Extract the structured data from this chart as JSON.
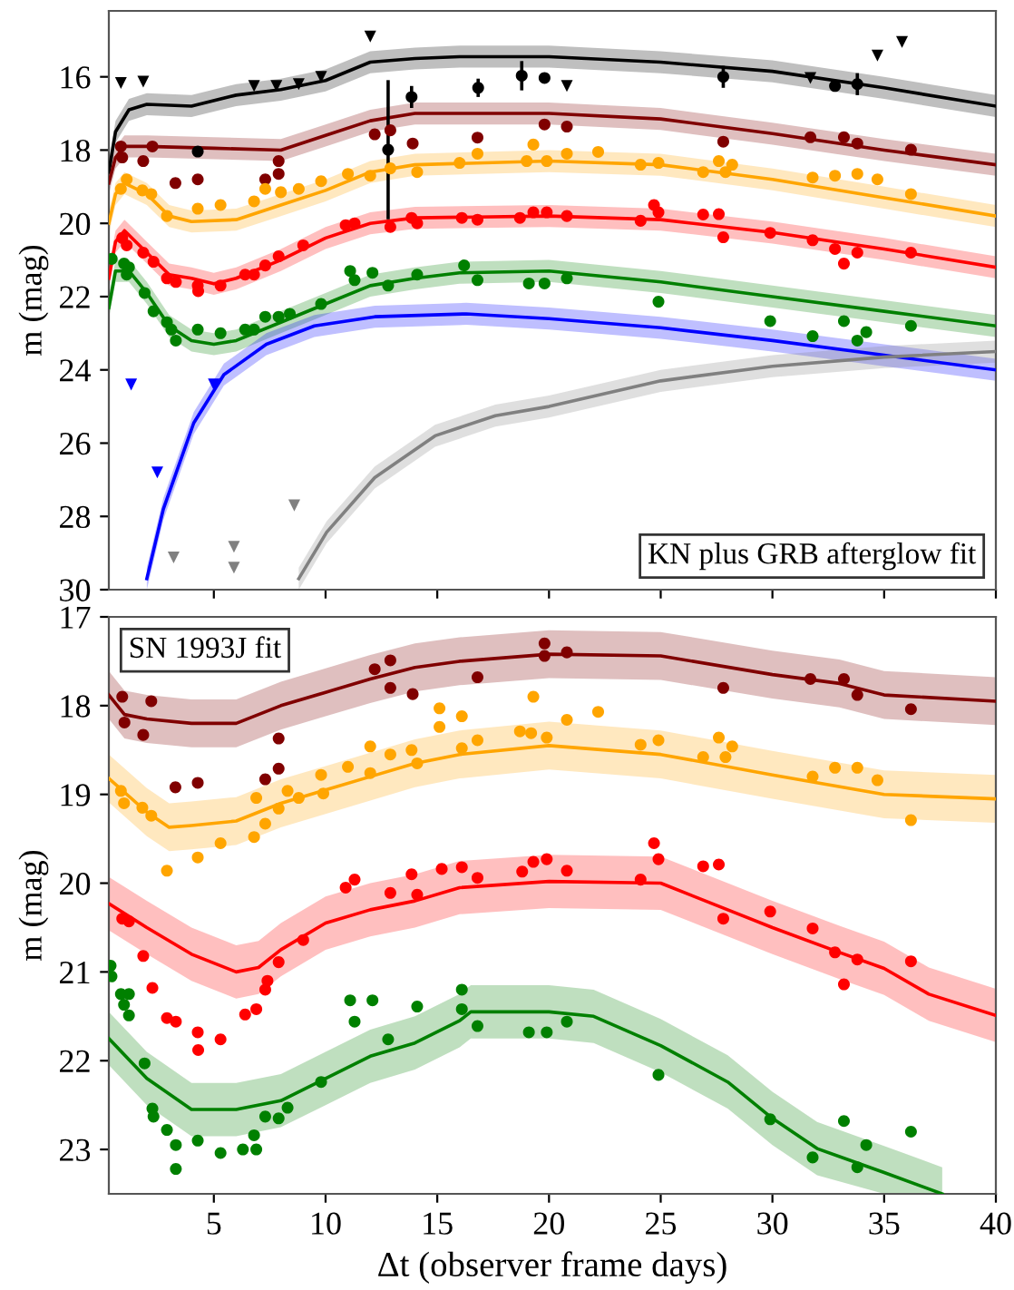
{
  "chart_data": [
    {
      "type": "line",
      "ylabel": "m (mag)",
      "xlim": [
        0.3,
        40
      ],
      "ylim": [
        30,
        14.2
      ],
      "xticks": [
        5,
        10,
        15,
        20,
        25,
        30,
        35,
        40
      ],
      "yticks": [
        16,
        18,
        20,
        22,
        24,
        26,
        28,
        30
      ],
      "tick_labels": "y",
      "annotations": [
        "KN plus GRB afterglow fit"
      ],
      "series": [
        {
          "type": "line",
          "color": "#000000",
          "x": [
            0.3,
            0.6,
            1.2,
            2,
            4,
            6,
            8,
            10,
            12,
            14,
            16,
            20,
            25,
            30,
            35,
            40
          ],
          "values": [
            18.6,
            17.5,
            16.9,
            16.75,
            16.8,
            16.5,
            16.35,
            16.1,
            15.6,
            15.5,
            15.45,
            15.45,
            15.6,
            15.85,
            16.3,
            16.8
          ],
          "lower": [
            18.3,
            17.2,
            16.6,
            16.45,
            16.5,
            16.2,
            16.05,
            15.8,
            15.3,
            15.2,
            15.15,
            15.15,
            15.3,
            15.55,
            16.0,
            16.5
          ],
          "upper": [
            18.9,
            17.8,
            17.2,
            17.05,
            17.1,
            16.8,
            16.65,
            16.4,
            15.9,
            15.8,
            15.75,
            15.75,
            15.9,
            16.15,
            16.6,
            17.1
          ]
        },
        {
          "type": "line",
          "color": "#800000",
          "x": [
            0.3,
            0.6,
            1,
            2,
            5,
            8,
            10,
            12,
            14,
            20,
            25,
            30,
            35,
            40
          ],
          "values": [
            18.9,
            18.2,
            17.9,
            17.9,
            17.95,
            18.0,
            17.6,
            17.2,
            17.0,
            17.0,
            17.15,
            17.55,
            18.0,
            18.4
          ],
          "lower": [
            18.6,
            17.9,
            17.6,
            17.6,
            17.65,
            17.7,
            17.3,
            16.9,
            16.7,
            16.7,
            16.85,
            17.25,
            17.7,
            18.1
          ],
          "upper": [
            19.2,
            18.5,
            18.2,
            18.2,
            18.25,
            18.3,
            17.9,
            17.5,
            17.3,
            17.3,
            17.45,
            17.85,
            18.3,
            18.7
          ]
        },
        {
          "type": "line",
          "color": "#ffa500",
          "x": [
            0.3,
            0.6,
            1,
            2,
            3,
            4,
            6,
            8,
            10,
            12,
            14,
            20,
            25,
            30,
            35,
            40
          ],
          "values": [
            20.0,
            19.2,
            18.9,
            19.2,
            19.8,
            19.95,
            19.9,
            19.5,
            19.1,
            18.6,
            18.4,
            18.3,
            18.4,
            18.8,
            19.3,
            19.8
          ],
          "lower": [
            19.7,
            18.9,
            18.6,
            18.9,
            19.5,
            19.65,
            19.6,
            19.2,
            18.8,
            18.3,
            18.1,
            18.0,
            18.1,
            18.5,
            19.0,
            19.5
          ],
          "upper": [
            20.3,
            19.5,
            19.2,
            19.5,
            20.1,
            20.25,
            20.2,
            19.8,
            19.4,
            18.9,
            18.7,
            18.6,
            18.7,
            19.1,
            19.6,
            20.1
          ]
        },
        {
          "type": "line",
          "color": "#ff0000",
          "x": [
            0.3,
            0.6,
            1,
            2,
            3,
            4,
            5,
            6,
            8,
            10,
            12,
            14,
            20,
            25,
            30,
            35,
            40
          ],
          "values": [
            21.5,
            20.5,
            20.2,
            20.8,
            21.4,
            21.5,
            21.65,
            21.5,
            21.0,
            20.4,
            20.0,
            19.85,
            19.8,
            19.9,
            20.25,
            20.7,
            21.2
          ],
          "lower": [
            21.2,
            20.2,
            19.9,
            20.5,
            21.1,
            21.2,
            21.35,
            21.2,
            20.7,
            20.1,
            19.7,
            19.55,
            19.5,
            19.6,
            19.95,
            20.4,
            20.9
          ],
          "upper": [
            21.8,
            20.8,
            20.5,
            21.1,
            21.7,
            21.8,
            21.95,
            21.8,
            21.3,
            20.7,
            20.3,
            20.15,
            20.1,
            20.2,
            20.55,
            21.0,
            21.5
          ]
        },
        {
          "type": "line",
          "color": "#008000",
          "x": [
            0.3,
            0.6,
            1.2,
            2,
            3,
            4,
            5,
            6,
            8,
            10,
            12,
            14,
            16,
            20,
            25,
            30,
            35,
            40
          ],
          "values": [
            22.3,
            21.3,
            21.3,
            21.9,
            22.8,
            23.2,
            23.3,
            23.2,
            22.7,
            22.2,
            21.7,
            21.5,
            21.35,
            21.3,
            21.6,
            22.0,
            22.4,
            22.8
          ],
          "lower": [
            22.0,
            21.0,
            21.0,
            21.6,
            22.5,
            22.9,
            23.0,
            22.9,
            22.4,
            21.9,
            21.4,
            21.2,
            21.05,
            21.0,
            21.3,
            21.7,
            22.1,
            22.5
          ],
          "upper": [
            22.6,
            21.6,
            21.6,
            22.2,
            23.1,
            23.5,
            23.6,
            23.5,
            23.0,
            22.5,
            22.0,
            21.8,
            21.65,
            21.6,
            21.9,
            22.3,
            22.7,
            23.1
          ]
        },
        {
          "type": "line",
          "color": "#0000ff",
          "x": [
            2.0,
            2.74,
            4.1,
            5.45,
            7.35,
            9.5,
            12.2,
            16.3,
            20,
            25,
            30,
            35,
            40
          ],
          "values": [
            29.7,
            27.8,
            25.45,
            24.13,
            23.3,
            22.8,
            22.55,
            22.47,
            22.6,
            22.85,
            23.2,
            23.6,
            24.0
          ],
          "lower": [
            29.4,
            27.5,
            25.15,
            23.83,
            23.0,
            22.5,
            22.25,
            22.17,
            22.3,
            22.55,
            22.9,
            23.3,
            23.7
          ],
          "upper": [
            30.0,
            28.1,
            25.75,
            24.43,
            23.6,
            23.1,
            22.85,
            22.77,
            22.9,
            23.15,
            23.5,
            23.9,
            24.3
          ]
        },
        {
          "type": "line",
          "color": "#808080",
          "x": [
            8.8,
            10.05,
            12.2,
            14.9,
            17.6,
            20,
            25,
            30,
            35,
            40
          ],
          "values": [
            29.7,
            28.43,
            26.94,
            25.8,
            25.25,
            25.0,
            24.3,
            23.9,
            23.65,
            23.5
          ],
          "lower": [
            29.4,
            28.13,
            26.64,
            25.5,
            24.95,
            24.7,
            24.0,
            23.6,
            23.35,
            23.2
          ],
          "upper": [
            30.0,
            28.73,
            27.24,
            26.1,
            25.55,
            25.3,
            24.6,
            24.2,
            23.95,
            23.8
          ]
        },
        {
          "type": "scatter",
          "marker": "circle",
          "color": "#000000",
          "x": [
            4.28,
            12.8,
            13.85,
            16.83,
            18.78,
            19.8,
            27.8,
            32.8,
            33.8
          ],
          "values": [
            18.04,
            17.99,
            16.55,
            16.3,
            15.97,
            16.03,
            16.0,
            16.25,
            16.2
          ],
          "errors": [
            null,
            1.9,
            0.3,
            0.25,
            0.4,
            null,
            0.3,
            null,
            0.3
          ]
        },
        {
          "type": "scatter",
          "marker": "circle",
          "color": "#800000",
          "x": [
            0.84,
            0.9,
            1.84,
            2.25,
            3.28,
            4.28,
            7.3,
            7.9,
            7.9,
            12.2,
            12.9,
            13.9,
            16.8,
            19.8,
            20.8,
            27.8,
            31.7,
            33.2,
            33.8,
            36.2
          ],
          "values": [
            17.9,
            18.2,
            18.3,
            17.9,
            18.9,
            18.8,
            18.8,
            18.3,
            18.65,
            17.57,
            17.46,
            17.82,
            17.66,
            17.3,
            17.36,
            17.77,
            17.65,
            17.65,
            17.82,
            17.99
          ]
        },
        {
          "type": "scatter",
          "marker": "circle",
          "color": "#ffa500",
          "x": [
            0.84,
            1.1,
            1.8,
            2.2,
            2.9,
            4.28,
            5.3,
            6.8,
            7.3,
            8.0,
            8.8,
            9.8,
            11.0,
            12.0,
            12.9,
            14.1,
            16.0,
            16.8,
            19.0,
            19.3,
            19.9,
            20.8,
            22.2,
            24.1,
            24.9,
            26.9,
            27.6,
            27.9,
            28.2,
            31.8,
            32.8,
            33.8,
            34.7,
            36.2
          ],
          "values": [
            19.06,
            18.8,
            19.1,
            19.2,
            19.8,
            19.6,
            19.5,
            19.4,
            19.06,
            19.15,
            19.06,
            18.85,
            18.65,
            18.7,
            18.5,
            18.6,
            18.35,
            18.1,
            18.3,
            17.85,
            18.3,
            18.1,
            18.05,
            18.4,
            18.35,
            18.6,
            18.3,
            18.6,
            18.4,
            18.75,
            18.7,
            18.65,
            18.8,
            19.2
          ]
        },
        {
          "type": "scatter",
          "marker": "circle",
          "color": "#ff0000",
          "x": [
            0.9,
            1.1,
            1.84,
            2.3,
            2.9,
            3.3,
            4.28,
            4.3,
            5.3,
            6.4,
            6.8,
            7.3,
            7.9,
            9.0,
            10.9,
            11.3,
            12.9,
            13.85,
            14.1,
            16.1,
            16.8,
            18.7,
            19.3,
            19.9,
            20.8,
            24.1,
            24.7,
            24.9,
            26.9,
            27.6,
            27.8,
            29.9,
            31.8,
            32.8,
            33.2,
            33.8,
            36.2
          ],
          "values": [
            20.4,
            20.6,
            20.8,
            21.05,
            21.5,
            21.6,
            21.7,
            21.85,
            21.7,
            21.4,
            21.4,
            21.15,
            20.9,
            20.6,
            20.05,
            20.0,
            20.1,
            19.85,
            20.0,
            19.85,
            19.9,
            19.85,
            19.7,
            19.7,
            19.8,
            19.93,
            19.5,
            19.7,
            19.76,
            19.75,
            20.38,
            20.26,
            20.46,
            20.7,
            21.1,
            20.8,
            20.8
          ]
        },
        {
          "type": "scatter",
          "marker": "circle",
          "color": "#008000",
          "x": [
            0.43,
            0.98,
            1.1,
            1.2,
            1.9,
            2.3,
            2.9,
            3.1,
            3.3,
            4.28,
            5.3,
            6.4,
            6.8,
            7.3,
            7.9,
            8.4,
            9.8,
            11.1,
            11.3,
            12.1,
            12.8,
            14.1,
            16.2,
            16.8,
            19.1,
            19.8,
            20.8,
            24.9,
            29.9,
            31.8,
            33.2,
            33.8,
            34.2,
            36.2
          ],
          "values": [
            20.97,
            21.1,
            21.4,
            21.2,
            21.9,
            22.4,
            22.7,
            22.9,
            23.2,
            22.9,
            23.0,
            22.9,
            22.9,
            22.55,
            22.55,
            22.47,
            22.2,
            21.3,
            21.55,
            21.35,
            21.7,
            21.4,
            21.15,
            21.55,
            21.64,
            21.64,
            21.5,
            22.14,
            22.67,
            23.08,
            22.67,
            23.2,
            22.97,
            22.8
          ]
        },
        {
          "type": "scatter",
          "marker": "triangle",
          "color": "#000000",
          "x": [
            0.84,
            1.84,
            6.8,
            7.8,
            8.8,
            9.8,
            12.0,
            20.8,
            31.7,
            34.7,
            35.8
          ],
          "values": [
            16.17,
            16.13,
            16.25,
            16.25,
            16.2,
            16.0,
            14.9,
            16.25,
            16.03,
            15.42,
            15.05
          ]
        },
        {
          "type": "scatter",
          "marker": "triangle",
          "color": "#0000ff",
          "x": [
            1.3,
            2.47,
            5.0
          ],
          "values": [
            24.4,
            26.8,
            24.4
          ]
        },
        {
          "type": "scatter",
          "marker": "triangle",
          "color": "#808080",
          "x": [
            3.2,
            5.9,
            5.9,
            8.6
          ],
          "values": [
            29.12,
            28.83,
            29.4,
            27.7
          ]
        }
      ]
    },
    {
      "type": "line",
      "ylabel": "m (mag)",
      "xlabel": "Δt (observer frame days)",
      "xlim": [
        0.3,
        40
      ],
      "ylim": [
        23.5,
        17
      ],
      "xticks": [
        5,
        10,
        15,
        20,
        25,
        30,
        35,
        40
      ],
      "yticks": [
        17,
        18,
        19,
        20,
        21,
        22,
        23
      ],
      "annotations": [
        "SN 1993J fit"
      ],
      "series": [
        {
          "type": "line",
          "color": "#800000",
          "x": [
            0.3,
            1,
            2,
            4,
            6,
            8,
            10,
            12,
            14,
            16,
            20,
            25,
            30,
            33,
            35,
            40
          ],
          "values": [
            17.88,
            18.1,
            18.15,
            18.2,
            18.2,
            18.0,
            17.85,
            17.7,
            17.57,
            17.5,
            17.42,
            17.44,
            17.65,
            17.75,
            17.88,
            17.95
          ],
          "lower": [
            17.61,
            17.83,
            17.88,
            17.93,
            17.93,
            17.73,
            17.58,
            17.43,
            17.3,
            17.23,
            17.15,
            17.17,
            17.38,
            17.48,
            17.61,
            17.68
          ],
          "upper": [
            18.15,
            18.37,
            18.42,
            18.47,
            18.47,
            18.27,
            18.12,
            17.97,
            17.84,
            17.77,
            17.69,
            17.71,
            17.92,
            18.02,
            18.15,
            18.22
          ]
        },
        {
          "type": "line",
          "color": "#ffa500",
          "x": [
            0.3,
            2,
            3,
            4,
            6,
            8,
            10,
            12,
            14,
            16,
            20,
            25,
            30,
            35,
            40
          ],
          "values": [
            18.82,
            19.2,
            19.37,
            19.35,
            19.3,
            19.1,
            18.95,
            18.8,
            18.65,
            18.55,
            18.45,
            18.55,
            18.78,
            19.0,
            19.05
          ],
          "lower": [
            18.55,
            18.93,
            19.1,
            19.08,
            19.03,
            18.83,
            18.68,
            18.53,
            18.38,
            18.28,
            18.18,
            18.28,
            18.51,
            18.73,
            18.78
          ],
          "upper": [
            19.09,
            19.47,
            19.64,
            19.62,
            19.57,
            19.37,
            19.22,
            19.07,
            18.92,
            18.82,
            18.72,
            18.82,
            19.05,
            19.27,
            19.32
          ]
        },
        {
          "type": "line",
          "color": "#ff0000",
          "x": [
            0.3,
            2,
            4,
            6,
            7,
            8,
            10,
            12,
            14,
            16,
            20,
            25,
            30,
            33,
            35,
            37,
            40
          ],
          "values": [
            20.23,
            20.5,
            20.8,
            21.0,
            20.95,
            20.75,
            20.45,
            20.3,
            20.2,
            20.05,
            19.98,
            20.0,
            20.5,
            20.78,
            20.96,
            21.25,
            21.49
          ],
          "lower": [
            19.93,
            20.2,
            20.5,
            20.7,
            20.65,
            20.45,
            20.15,
            20.0,
            19.9,
            19.75,
            19.68,
            19.7,
            20.2,
            20.48,
            20.66,
            20.95,
            21.19
          ],
          "upper": [
            20.53,
            20.8,
            21.1,
            21.3,
            21.25,
            21.05,
            20.75,
            20.6,
            20.5,
            20.35,
            20.28,
            20.3,
            20.8,
            21.08,
            21.26,
            21.55,
            21.79
          ]
        },
        {
          "type": "line",
          "color": "#008000",
          "x": [
            0.3,
            2,
            4,
            6,
            8,
            10,
            12,
            14,
            16,
            16.5,
            20,
            22,
            25,
            28,
            30,
            32,
            35,
            37.6
          ],
          "values": [
            21.75,
            22.2,
            22.55,
            22.55,
            22.45,
            22.2,
            21.95,
            21.8,
            21.55,
            21.45,
            21.45,
            21.5,
            21.83,
            22.24,
            22.65,
            22.99,
            23.26,
            23.5
          ],
          "lower": [
            21.45,
            21.9,
            22.25,
            22.25,
            22.15,
            21.9,
            21.65,
            21.5,
            21.25,
            21.15,
            21.15,
            21.2,
            21.53,
            21.94,
            22.35,
            22.69,
            22.96,
            23.2
          ],
          "upper": [
            22.05,
            22.5,
            22.85,
            22.85,
            22.75,
            22.5,
            22.25,
            22.1,
            21.85,
            21.75,
            21.75,
            21.8,
            22.13,
            22.54,
            22.95,
            23.29,
            23.5,
            23.5
          ]
        },
        {
          "type": "scatter",
          "marker": "circle",
          "color": "#800000",
          "x": [
            0.9,
            1.0,
            1.84,
            2.2,
            3.28,
            4.28,
            7.3,
            7.9,
            7.9,
            12.2,
            12.9,
            12.9,
            13.9,
            16.8,
            19.8,
            19.8,
            20.8,
            27.8,
            31.7,
            33.2,
            33.8,
            36.2
          ],
          "values": [
            17.9,
            18.19,
            18.33,
            17.95,
            18.92,
            18.87,
            18.83,
            18.37,
            18.71,
            17.59,
            17.49,
            17.8,
            17.87,
            17.68,
            17.3,
            17.44,
            17.4,
            17.8,
            17.7,
            17.7,
            17.88,
            18.04
          ]
        },
        {
          "type": "scatter",
          "marker": "circle",
          "color": "#ffa500",
          "x": [
            0.84,
            0.98,
            1.8,
            2.2,
            2.9,
            4.28,
            5.3,
            6.8,
            6.9,
            7.3,
            7.9,
            8.3,
            8.8,
            9.8,
            9.9,
            11.0,
            12.0,
            12.0,
            12.9,
            13.85,
            14.1,
            15.1,
            15.1,
            16.1,
            16.1,
            16.8,
            18.7,
            19.3,
            19.2,
            19.9,
            20.8,
            22.2,
            24.1,
            24.9,
            26.9,
            27.6,
            27.9,
            28.2,
            31.8,
            32.8,
            33.8,
            34.7,
            36.2
          ],
          "values": [
            18.96,
            19.1,
            19.15,
            19.24,
            19.86,
            19.71,
            19.55,
            19.48,
            19.04,
            19.33,
            19.16,
            18.96,
            19.04,
            18.78,
            18.99,
            18.69,
            18.76,
            18.46,
            18.55,
            18.5,
            18.65,
            18.03,
            18.24,
            18.12,
            18.48,
            18.39,
            18.29,
            17.9,
            18.31,
            18.36,
            18.16,
            18.07,
            18.44,
            18.39,
            18.58,
            18.36,
            18.58,
            18.46,
            18.8,
            18.7,
            18.7,
            18.84,
            19.29
          ]
        },
        {
          "type": "scatter",
          "marker": "circle",
          "color": "#ff0000",
          "x": [
            0.9,
            1.2,
            1.84,
            2.25,
            2.9,
            3.3,
            4.28,
            4.3,
            5.3,
            6.4,
            6.9,
            7.3,
            7.4,
            7.9,
            9.0,
            10.9,
            11.3,
            12.9,
            13.85,
            14.1,
            15.2,
            16.1,
            16.8,
            18.8,
            19.3,
            19.9,
            20.8,
            24.1,
            24.7,
            24.9,
            26.9,
            27.6,
            27.8,
            29.9,
            31.8,
            32.8,
            33.2,
            33.8,
            36.2
          ],
          "values": [
            20.4,
            20.43,
            20.82,
            21.18,
            21.52,
            21.56,
            21.68,
            21.88,
            21.76,
            21.48,
            21.42,
            21.2,
            21.1,
            20.89,
            20.64,
            20.05,
            19.96,
            20.11,
            19.9,
            20.13,
            19.84,
            19.82,
            19.94,
            19.87,
            19.76,
            19.73,
            19.86,
            19.96,
            19.55,
            19.73,
            19.81,
            19.79,
            20.4,
            20.32,
            20.51,
            20.78,
            21.14,
            20.86,
            20.88
          ]
        },
        {
          "type": "scatter",
          "marker": "circle",
          "color": "#008000",
          "x": [
            0.38,
            0.42,
            0.84,
            0.98,
            1.2,
            1.2,
            1.9,
            2.25,
            2.3,
            2.9,
            3.3,
            3.3,
            4.28,
            5.3,
            6.3,
            6.8,
            6.9,
            7.3,
            7.9,
            8.3,
            9.8,
            11.1,
            11.3,
            12.1,
            12.8,
            14.1,
            16.1,
            16.1,
            16.8,
            19.1,
            19.9,
            20.8,
            24.9,
            29.9,
            31.8,
            33.2,
            33.8,
            34.2,
            36.2
          ],
          "values": [
            20.93,
            21.05,
            21.25,
            21.37,
            21.25,
            21.49,
            22.03,
            22.54,
            22.63,
            22.78,
            22.95,
            23.22,
            22.9,
            23.04,
            23.0,
            22.84,
            23.0,
            22.63,
            22.65,
            22.53,
            22.24,
            21.32,
            21.56,
            21.32,
            21.76,
            21.39,
            21.2,
            21.42,
            21.61,
            21.68,
            21.68,
            21.56,
            22.16,
            22.66,
            23.09,
            22.68,
            23.2,
            22.95,
            22.8
          ]
        }
      ]
    }
  ]
}
